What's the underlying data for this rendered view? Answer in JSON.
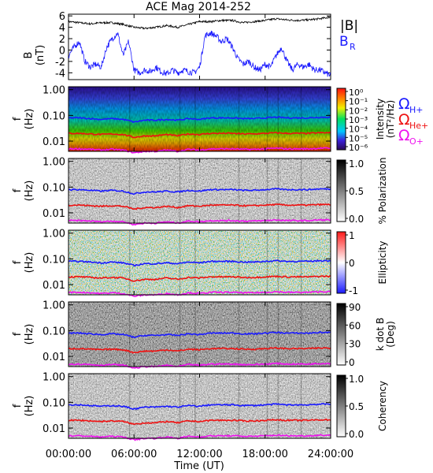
{
  "title": "ACE Mag 2014-252",
  "colors": {
    "ion_h": "#1a1aff",
    "ion_he": "#ee1111",
    "ion_o": "#ee11ee",
    "line_B": "#000000",
    "line_BR": "#1a1aff"
  },
  "xaxis": {
    "label": "Time (UT)",
    "ticks": [
      "00:00:00",
      "06:00:00",
      "12:00:00",
      "18:00:00",
      "24:00:00"
    ],
    "hours": [
      0,
      6,
      12,
      18,
      24
    ]
  },
  "freq_axis": {
    "label_f": "f",
    "label_unit": "(Hz)",
    "ticks": [
      "1.00",
      "0.10",
      "0.01"
    ],
    "values": [
      1.0,
      0.1,
      0.01
    ],
    "range": [
      0.004,
      1.3
    ]
  },
  "panel_b": {
    "ylabel_top": "B",
    "ylabel_unit": "(nT)",
    "legend_B": "|B|",
    "legend_BR_main": "B",
    "legend_BR_sub": "R",
    "yticks": [
      "6",
      "4",
      "2",
      "0",
      "-2",
      "-4"
    ],
    "yvalues": [
      6,
      4,
      2,
      0,
      -2,
      -4
    ],
    "ylim": [
      -5.2,
      6.3
    ]
  },
  "ion_legend": [
    {
      "omega": "Ω",
      "sub": "H+",
      "color": "#1a1aff"
    },
    {
      "omega": "Ω",
      "sub": "He+",
      "color": "#ee1111"
    },
    {
      "omega": "Ω",
      "sub": "O+",
      "color": "#ee11ee"
    }
  ],
  "colorbars": [
    {
      "title": "Intensity",
      "unit": "(nT²/Hz)",
      "ticks": [
        "10⁰",
        "10⁻¹",
        "10⁻²",
        "10⁻³",
        "10⁻⁴",
        "10⁻⁵",
        "10⁻⁶"
      ]
    },
    {
      "title": "% Polarization",
      "unit": "",
      "ticks": [
        "1.0",
        "0.5",
        "0.0"
      ]
    },
    {
      "title": "Ellipticity",
      "unit": "",
      "ticks": [
        "1",
        "0",
        "-1"
      ]
    },
    {
      "title": "k dot B",
      "unit": "(Deg)",
      "ticks": [
        "90",
        "60",
        "30",
        "0"
      ]
    },
    {
      "title": "Coherency",
      "unit": "",
      "ticks": [
        "1.0",
        "0.5",
        "0.0"
      ]
    }
  ],
  "chart_data": {
    "type": "heatmap",
    "title": "ACE Mag 2014-252",
    "xlabel": "Time (UT)",
    "xlim_hours": [
      0,
      24
    ],
    "line_panel": {
      "ylabel": "B (nT)",
      "ylim": [
        -5.2,
        6.3
      ],
      "series": [
        {
          "name": "|B|",
          "color": "#000000",
          "hours": [
            0,
            1,
            2,
            3,
            4,
            5,
            6,
            7,
            8,
            9,
            10,
            11,
            12,
            13,
            14,
            15,
            16,
            17,
            18,
            19,
            20,
            21,
            22,
            23,
            24
          ],
          "values": [
            5.0,
            4.8,
            4.6,
            4.8,
            4.8,
            4.5,
            4.0,
            3.8,
            4.0,
            4.3,
            4.0,
            4.5,
            5.0,
            5.0,
            5.2,
            5.2,
            4.8,
            5.0,
            5.2,
            5.5,
            5.3,
            5.2,
            5.3,
            5.5,
            5.8
          ]
        },
        {
          "name": "B_R",
          "color": "#1a1aff",
          "hours": [
            0,
            0.5,
            1,
            1.5,
            2,
            2.5,
            3,
            3.5,
            4,
            4.5,
            5,
            5.5,
            6,
            6.5,
            7,
            7.5,
            8,
            8.5,
            9,
            9.5,
            10,
            10.5,
            11,
            11.5,
            12,
            12.5,
            13,
            13.5,
            14,
            14.5,
            15,
            15.5,
            16,
            16.5,
            17,
            17.5,
            18,
            18.5,
            19,
            19.5,
            20,
            20.5,
            21,
            21.5,
            22,
            22.5,
            23,
            23.5,
            24
          ],
          "values": [
            -1.0,
            0.5,
            1.5,
            -2.0,
            -3.0,
            -2.5,
            -3.0,
            0.5,
            2.0,
            3.0,
            -1.0,
            1.5,
            -3.5,
            -4.0,
            -3.5,
            -3.8,
            -3.0,
            -3.8,
            -4.2,
            -3.5,
            -4.0,
            -3.5,
            -3.8,
            -4.0,
            -3.0,
            2.5,
            3.0,
            2.5,
            1.5,
            2.0,
            0.5,
            -1.5,
            -2.5,
            -2.0,
            -3.0,
            -3.5,
            -2.5,
            -3.0,
            -1.0,
            0.5,
            -2.0,
            -3.5,
            -2.5,
            -3.0,
            -2.5,
            -3.5,
            -3.5,
            -4.0,
            -4.5
          ]
        }
      ]
    },
    "spectral_panels": [
      "Intensity",
      "% Polarization",
      "Ellipticity",
      "k dot B",
      "Coherency"
    ],
    "frequency_range_hz": [
      0.004,
      1.3
    ],
    "gyrofrequency_lines_hz": [
      {
        "name": "Ω H+",
        "color": "#1a1aff",
        "values": [
          0.08,
          0.08,
          0.075,
          0.07,
          0.075,
          0.07,
          0.055,
          0.065,
          0.065,
          0.07,
          0.065,
          0.075,
          0.07,
          0.08,
          0.08,
          0.08,
          0.075,
          0.075,
          0.08,
          0.085,
          0.08,
          0.08,
          0.08,
          0.085,
          0.085
        ]
      },
      {
        "name": "Ω He+",
        "color": "#ee1111",
        "values": [
          0.02,
          0.02,
          0.019,
          0.018,
          0.019,
          0.018,
          0.014,
          0.016,
          0.016,
          0.018,
          0.016,
          0.019,
          0.018,
          0.02,
          0.02,
          0.02,
          0.019,
          0.019,
          0.02,
          0.021,
          0.02,
          0.02,
          0.02,
          0.021,
          0.021
        ]
      },
      {
        "name": "Ω O+",
        "color": "#ee11ee",
        "values": [
          0.005,
          0.005,
          0.0048,
          0.0045,
          0.0048,
          0.0045,
          0.0035,
          0.004,
          0.004,
          0.0045,
          0.004,
          0.0048,
          0.0045,
          0.005,
          0.005,
          0.005,
          0.0048,
          0.0048,
          0.005,
          0.0053,
          0.005,
          0.005,
          0.005,
          0.0053,
          0.0053
        ]
      }
    ]
  }
}
